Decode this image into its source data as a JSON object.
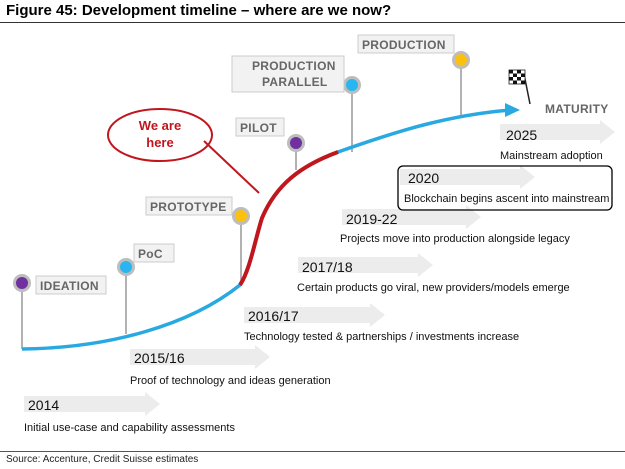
{
  "title": "Figure 45: Development timeline – where are we now?",
  "source": "Source: Accenture, Credit Suisse estimates",
  "callout": {
    "line1": "We are",
    "line2": "here"
  },
  "colors": {
    "curve": "#29a9e1",
    "current": "#c0161d",
    "purple": "#7030a0",
    "cyan": "#29b6f0",
    "yellow": "#fcc10e",
    "arrow_fill": "#ececec"
  },
  "stages": [
    {
      "label": "IDEATION",
      "color": "purple"
    },
    {
      "label": "PoC",
      "color": "cyan"
    },
    {
      "label": "PROTOTYPE",
      "color": "yellow"
    },
    {
      "label": "PILOT",
      "color": "purple"
    },
    {
      "label": "PRODUCTION",
      "label2": "PARALLEL",
      "color": "cyan"
    },
    {
      "label": "PRODUCTION",
      "color": "yellow"
    },
    {
      "label": "MATURITY",
      "icon": "checkered-flag-icon"
    }
  ],
  "milestones": [
    {
      "year": "2014",
      "description": "Initial use-case and capability assessments"
    },
    {
      "year": "2015/16",
      "description": "Proof of technology and ideas generation"
    },
    {
      "year": "2016/17",
      "description": "Technology tested & partnerships / investments increase"
    },
    {
      "year": "2017/18",
      "description": "Certain products go viral, new providers/models emerge"
    },
    {
      "year": "2019-22",
      "description": "Projects move into production alongside legacy"
    },
    {
      "year": "2020",
      "description": "Blockchain begins ascent into mainstream",
      "highlighted": true
    },
    {
      "year": "2025",
      "description": "Mainstream adoption"
    }
  ]
}
